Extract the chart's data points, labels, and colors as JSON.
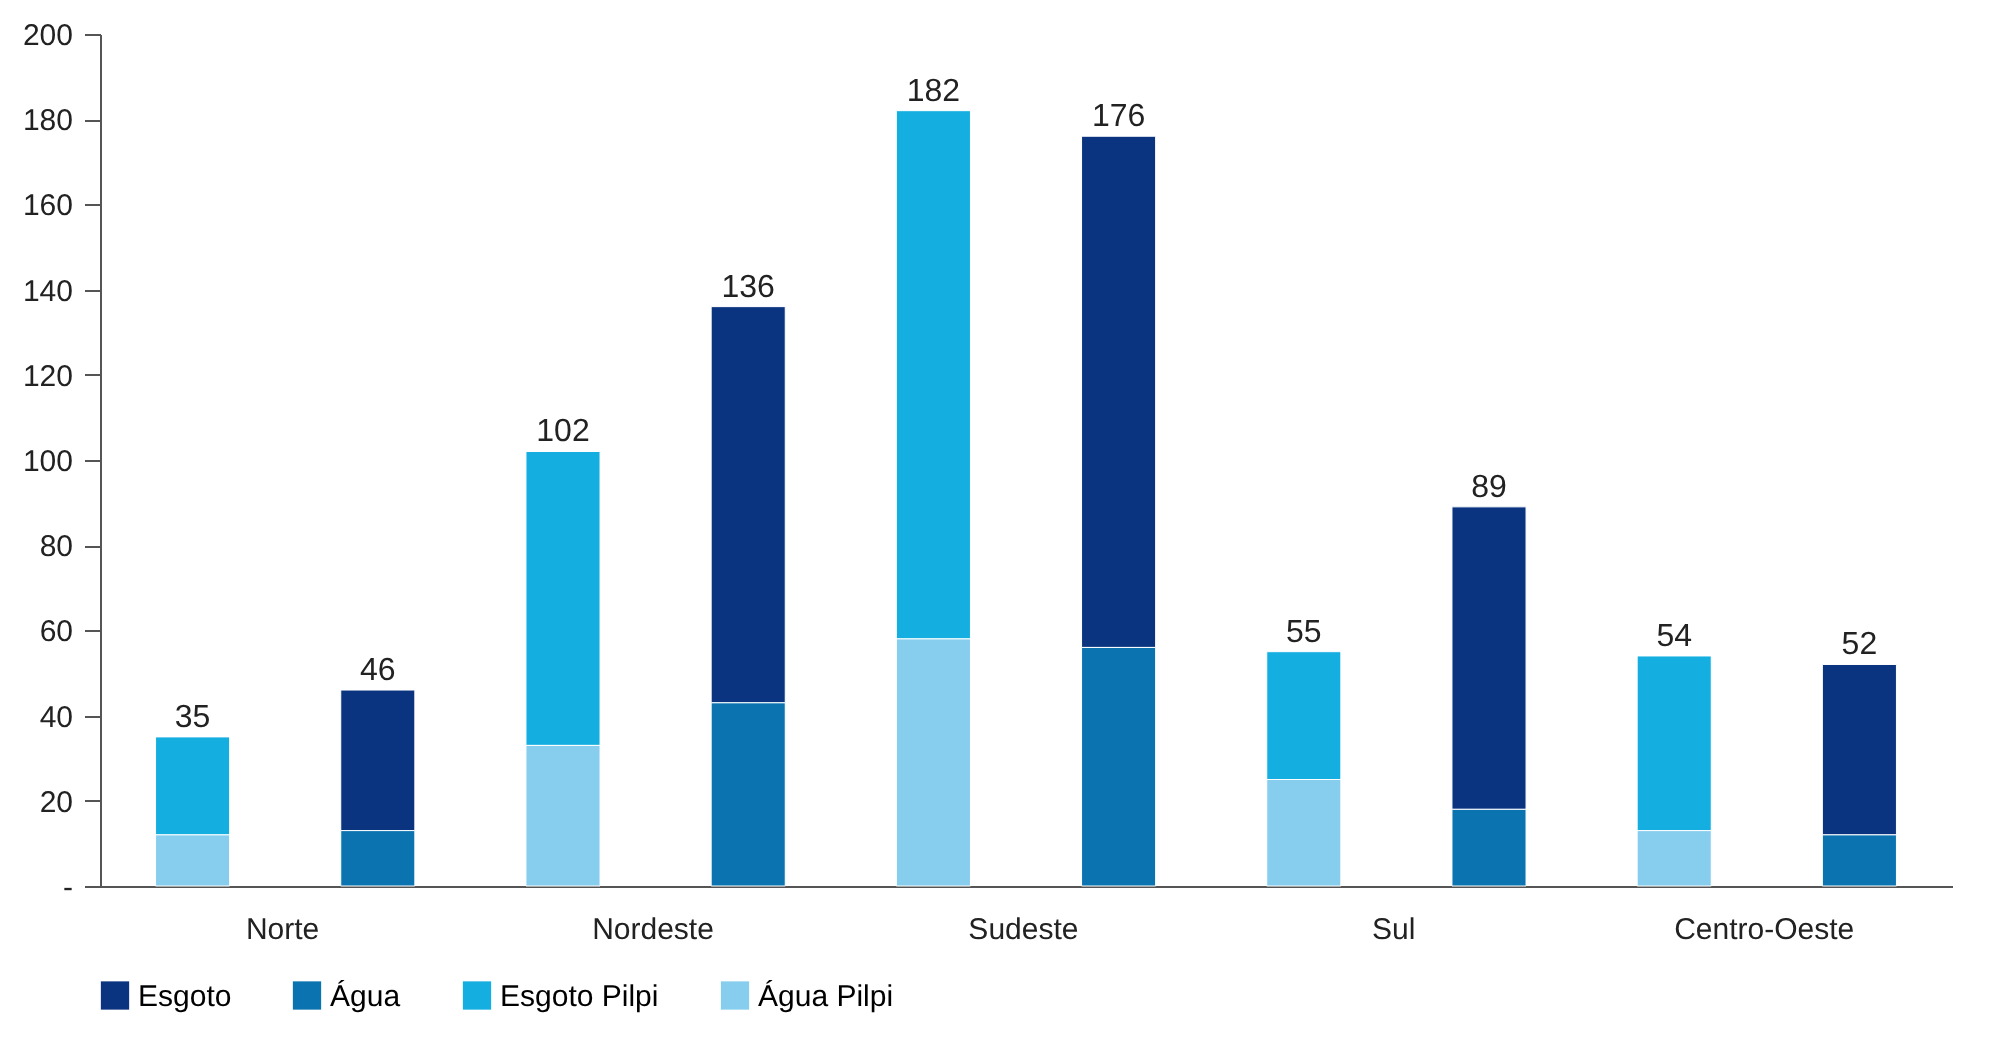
{
  "chart_data": {
    "type": "bar",
    "stacked": true,
    "categories": [
      "Norte",
      null,
      "Nordeste",
      null,
      "Sudeste",
      null,
      "Sul",
      null,
      "Centro-Oeste",
      null
    ],
    "series": [
      {
        "name": "Esgoto",
        "color": "#0a3480",
        "values": [
          null,
          33,
          null,
          93,
          null,
          120,
          null,
          71,
          null,
          40
        ]
      },
      {
        "name": "Água",
        "color": "#0a73b0",
        "values": [
          null,
          13,
          null,
          43,
          null,
          56,
          null,
          18,
          null,
          12
        ]
      },
      {
        "name": "Esgoto Pilpi",
        "color": "#14aee0",
        "values": [
          23,
          null,
          69,
          null,
          124,
          null,
          30,
          null,
          41,
          null
        ]
      },
      {
        "name": "Água Pilpi",
        "color": "#87cdee",
        "values": [
          12,
          null,
          33,
          null,
          58,
          null,
          25,
          null,
          13,
          null
        ]
      }
    ],
    "totals": [
      "35",
      "46",
      "102",
      "136",
      "182",
      "176",
      "55",
      "89",
      "54",
      "52"
    ],
    "ylim": [
      0,
      200
    ],
    "yticks": [
      {
        "value": 0,
        "label": "-"
      },
      20,
      40,
      60,
      80,
      100,
      120,
      140,
      160,
      180,
      200
    ],
    "grid": false,
    "legend": "bottom"
  }
}
